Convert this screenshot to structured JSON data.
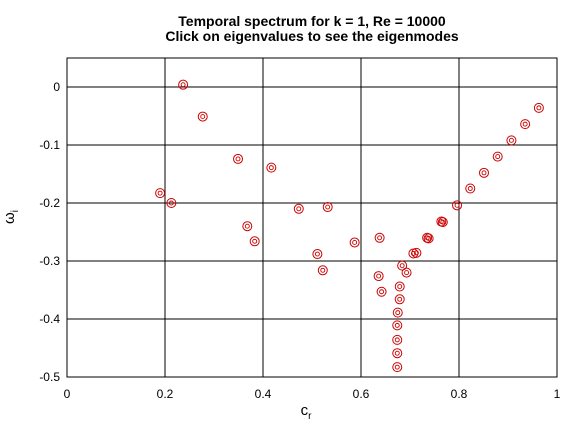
{
  "chart_data": {
    "type": "scatter",
    "title": [
      "Temporal spectrum for k = 1, Re = 10000",
      "Click on eigenvalues to see the eigenmodes"
    ],
    "xlabel": "c",
    "xlabel_sub": "r",
    "ylabel": "ω",
    "ylabel_sub": "i",
    "xlim": [
      0,
      1
    ],
    "ylim": [
      -0.5,
      0.05
    ],
    "xticks": [
      0,
      0.2,
      0.4,
      0.6,
      0.8,
      1
    ],
    "xtick_labels": [
      "0",
      "0.2",
      "0.4",
      "0.6",
      "0.8",
      "1"
    ],
    "yticks": [
      0,
      -0.1,
      -0.2,
      -0.3,
      -0.4,
      -0.5
    ],
    "ytick_labels": [
      "0",
      "-0.1",
      "-0.2",
      "-0.3",
      "-0.4",
      "-0.5"
    ],
    "grid": true,
    "marker": "circle",
    "marker_color": "#cc0000",
    "series": [
      {
        "points": [
          [
            0.237,
            0.004
          ],
          [
            0.277,
            -0.051
          ],
          [
            0.349,
            -0.124
          ],
          [
            0.417,
            -0.139
          ],
          [
            0.19,
            -0.183
          ],
          [
            0.213,
            -0.2
          ],
          [
            0.368,
            -0.24
          ],
          [
            0.383,
            -0.266
          ],
          [
            0.473,
            -0.21
          ],
          [
            0.532,
            -0.207
          ],
          [
            0.511,
            -0.288
          ],
          [
            0.522,
            -0.316
          ],
          [
            0.587,
            -0.268
          ],
          [
            0.638,
            -0.26
          ],
          [
            0.636,
            -0.326
          ],
          [
            0.642,
            -0.353
          ],
          [
            0.684,
            -0.308
          ],
          [
            0.693,
            -0.32
          ],
          [
            0.679,
            -0.344
          ],
          [
            0.679,
            -0.366
          ],
          [
            0.675,
            -0.389
          ],
          [
            0.674,
            -0.411
          ],
          [
            0.674,
            -0.436
          ],
          [
            0.674,
            -0.459
          ],
          [
            0.674,
            -0.483
          ],
          [
            0.707,
            -0.287
          ],
          [
            0.713,
            -0.286
          ],
          [
            0.735,
            -0.26
          ],
          [
            0.738,
            -0.261
          ],
          [
            0.764,
            -0.232
          ],
          [
            0.767,
            -0.233
          ],
          [
            0.796,
            -0.204
          ],
          [
            0.823,
            -0.175
          ],
          [
            0.851,
            -0.148
          ],
          [
            0.879,
            -0.12
          ],
          [
            0.907,
            -0.092
          ],
          [
            0.935,
            -0.064
          ],
          [
            0.963,
            -0.036
          ]
        ]
      }
    ]
  }
}
